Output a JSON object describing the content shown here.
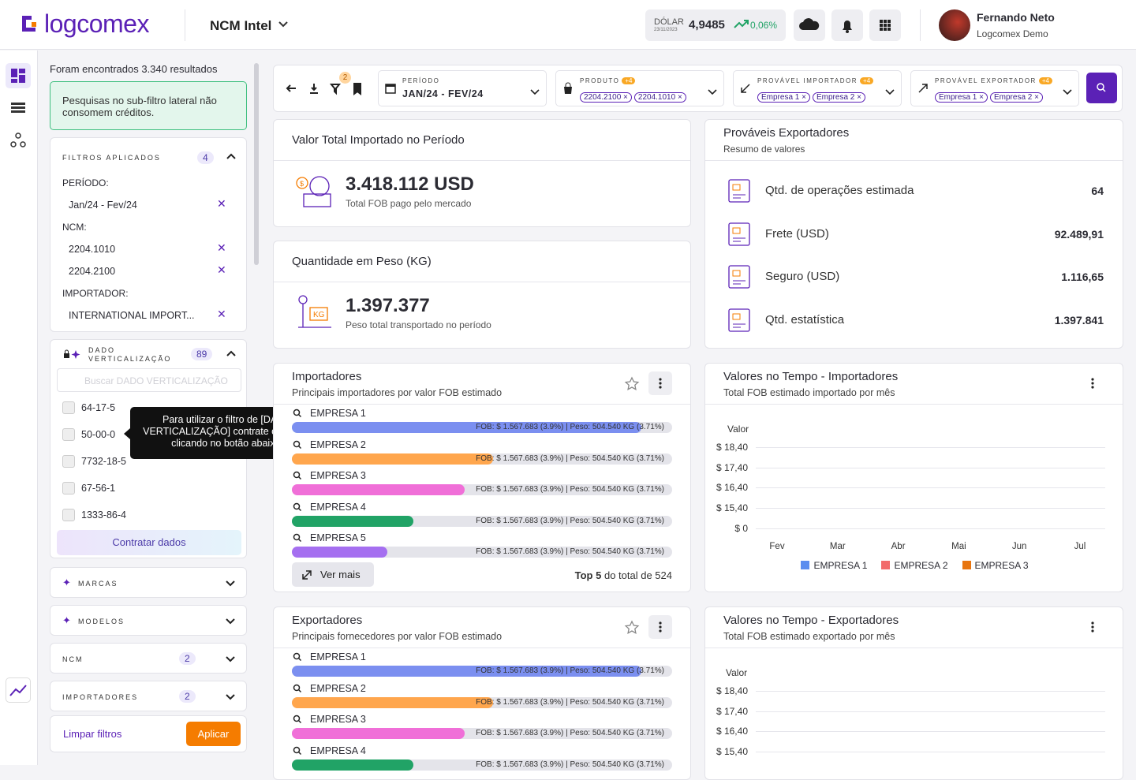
{
  "header": {
    "brand": "logcomex",
    "module": "NCM Intel",
    "dolar_label": "DÓLAR",
    "dolar_date": "23/11/2023",
    "dolar_value": "4,9485",
    "dolar_change": "0,06%",
    "user_name": "Fernando Neto",
    "user_company": "Logcomex Demo"
  },
  "sidebar": {
    "results": "Foram encontrados 3.340 resultados",
    "notice": "Pesquisas no sub-filtro lateral não consomem créditos.",
    "applied": {
      "title": "FILTROS APLICADOS",
      "count": "4",
      "groups": [
        {
          "label": "PERÍODO:",
          "items": [
            "Jan/24 - Fev/24"
          ]
        },
        {
          "label": "NCM:",
          "items": [
            "2204.1010",
            "2204.2100"
          ]
        },
        {
          "label": "IMPORTADOR:",
          "items": [
            "INTERNATIONAL IMPORT..."
          ]
        }
      ]
    },
    "dado": {
      "title": "DADO VERTICALIZAÇÃO",
      "count": "89",
      "search": "Buscar DADO VERTICALIZAÇÃO",
      "options": [
        "64-17-5",
        "50-00-0",
        "7732-18-5",
        "67-56-1",
        "1333-86-4"
      ],
      "button": "Contratar dados",
      "tooltip": "Para utilizar o filtro de [DADO VERTICALIZAÇÃO] contrate os dados clicando no botão abaixo."
    },
    "sections": [
      {
        "title": "MARCAS"
      },
      {
        "title": "MODELOS"
      },
      {
        "title": "NCM",
        "count": "2"
      },
      {
        "title": "IMPORTADORES",
        "count": "2"
      }
    ],
    "clear": "Limpar filtros",
    "apply": "Aplicar"
  },
  "toolbar": {
    "badge": "2",
    "filters": [
      {
        "label": "PERÍODO",
        "value": "JAN/24 - FEV/24"
      },
      {
        "label": "PRODUTO",
        "extra": "+4",
        "chips": [
          "2204.2100",
          "2204.1010"
        ]
      },
      {
        "label": "PROVÁVEL IMPORTADOR",
        "extra": "+4",
        "chips": [
          "Empresa 1",
          "Empresa 2"
        ]
      },
      {
        "label": "PROVÁVEL EXPORTADOR",
        "extra": "+4",
        "chips": [
          "Empresa 1",
          "Empresa 2"
        ]
      }
    ]
  },
  "valor_total": {
    "title": "Valor Total Importado no Período",
    "value": "3.418.112 USD",
    "caption": "Total FOB pago pelo mercado"
  },
  "peso": {
    "title": "Quantidade em Peso (KG)",
    "value": "1.397.377",
    "caption": "Peso total transportado no período"
  },
  "resumo": {
    "title": "Prováveis Exportadores",
    "subtitle": "Resumo de valores",
    "rows": [
      {
        "label": "Qtd. de operações estimada",
        "value": "64"
      },
      {
        "label": "Frete (USD)",
        "value": "92.489,91"
      },
      {
        "label": "Seguro (USD)",
        "value": "1.116,65"
      },
      {
        "label": "Qtd. estatística",
        "value": "1.397.841"
      }
    ]
  },
  "importadores": {
    "title": "Importadores",
    "subtitle": "Principais importadores por valor FOB estimado",
    "items": [
      {
        "name": "EMPRESA 1",
        "label": "FOB: $ 1.567.683 (3.9%) | Peso: 504.540 KG (3.71%)"
      },
      {
        "name": "EMPRESA 2",
        "label": "FOB: $ 1.567.683 (3.9%) | Peso: 504.540 KG (3.71%)"
      },
      {
        "name": "EMPRESA 3",
        "label": "FOB: $ 1.567.683 (3.9%) | Peso: 504.540 KG (3.71%)"
      },
      {
        "name": "EMPRESA 4",
        "label": "FOB: $ 1.567.683 (3.9%) | Peso: 504.540 KG (3.71%)"
      },
      {
        "name": "EMPRESA 5",
        "label": "FOB: $ 1.567.683 (3.9%) | Peso: 504.540 KG (3.71%)"
      }
    ],
    "more": "Ver mais",
    "footer_bold": "Top 5",
    "footer": "do total de 524"
  },
  "exportadores": {
    "title": "Exportadores",
    "subtitle": "Principais fornecedores por valor FOB estimado",
    "items": [
      {
        "name": "EMPRESA 1",
        "label": "FOB: $ 1.567.683 (3.9%) | Peso: 504.540 KG (3.71%)"
      },
      {
        "name": "EMPRESA 2",
        "label": "FOB: $ 1.567.683 (3.9%) | Peso: 504.540 KG (3.71%)"
      },
      {
        "name": "EMPRESA 3",
        "label": "FOB: $ 1.567.683 (3.9%) | Peso: 504.540 KG (3.71%)"
      },
      {
        "name": "EMPRESA 4",
        "label": "FOB: $ 1.567.683 (3.9%) | Peso: 504.540 KG (3.71%)"
      }
    ]
  },
  "tempo_importadores": {
    "title": "Valores no Tempo - Importadores",
    "subtitle": "Total FOB estimado importado por mês",
    "axis_title": "Valor",
    "yticks": [
      "$ 18,40",
      "$ 17,40",
      "$ 16,40",
      "$ 15,40",
      "$ 0"
    ],
    "categories": [
      "Fev",
      "Mar",
      "Abr",
      "Mai",
      "Jun",
      "Jul"
    ],
    "legend": [
      {
        "name": "EMPRESA 1",
        "color": "#5b8def"
      },
      {
        "name": "EMPRESA 2",
        "color": "#f26b6b"
      },
      {
        "name": "EMPRESA 3",
        "color": "#e8750f"
      }
    ]
  },
  "tempo_exportadores": {
    "title": "Valores no Tempo - Exportadores",
    "subtitle": "Total FOB estimado exportado por mês",
    "axis_title": "Valor",
    "yticks": [
      "$ 18,40",
      "$ 17,40",
      "$ 16,40",
      "$ 15,40"
    ]
  }
}
